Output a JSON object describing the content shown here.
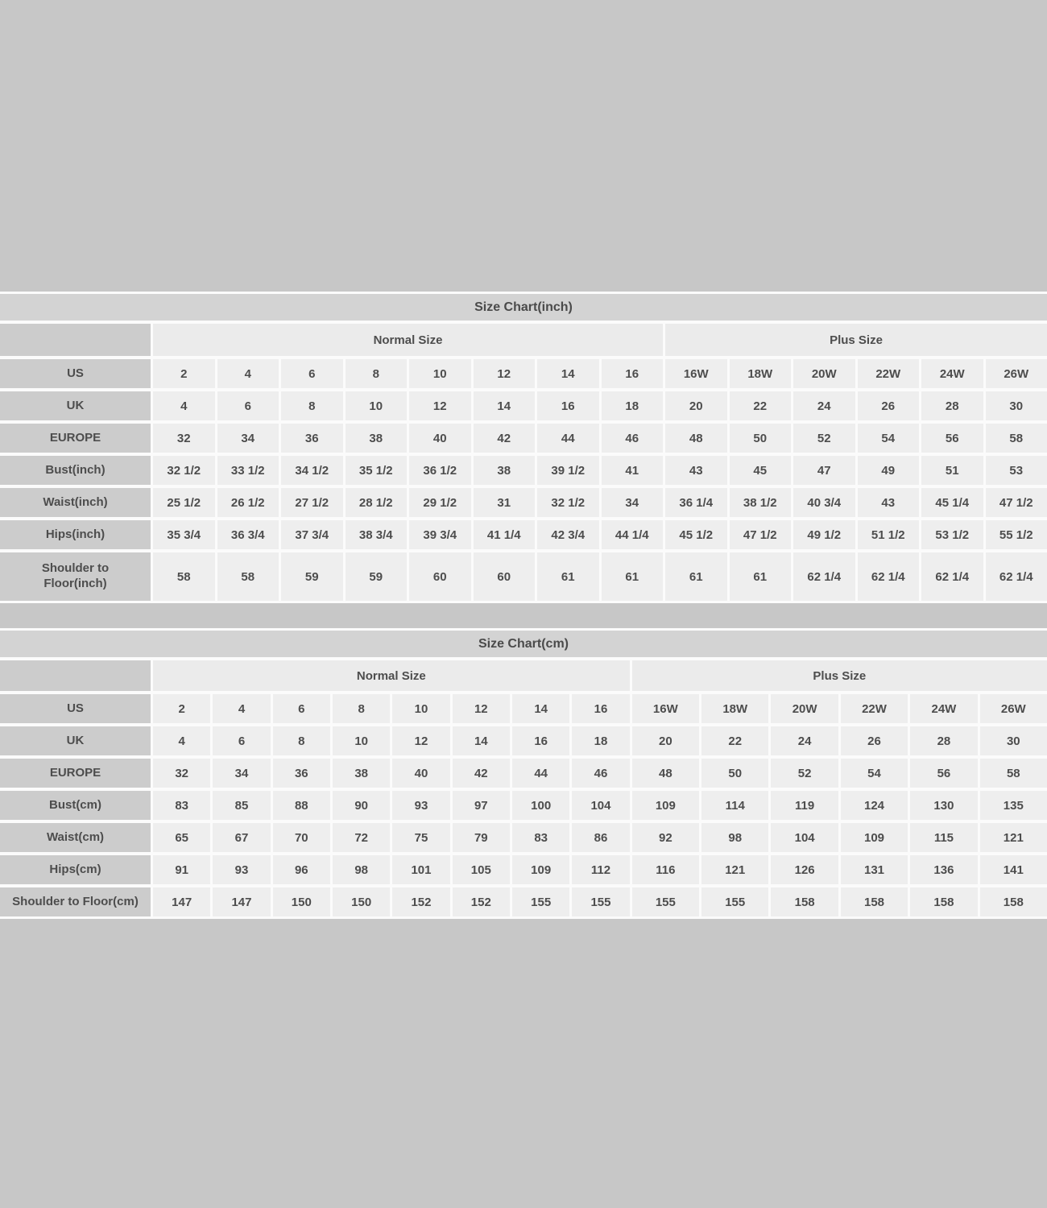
{
  "page": {
    "background_color": "#c7c7c7",
    "separator_color": "#fbfbfb",
    "title_bar_color": "#d3d3d3",
    "label_cell_color": "#cccccc",
    "group_header_color": "#ebebeb",
    "data_cell_color": "#eeeeee",
    "text_color": "#4d4d4d"
  },
  "chart_data": [
    {
      "type": "table",
      "title": "Size Chart(inch)",
      "column_groups": [
        {
          "label": "Normal Size",
          "span": 8
        },
        {
          "label": "Plus Size",
          "span": 6
        }
      ],
      "rows": [
        {
          "label": "US",
          "values": [
            "2",
            "4",
            "6",
            "8",
            "10",
            "12",
            "14",
            "16",
            "16W",
            "18W",
            "20W",
            "22W",
            "24W",
            "26W"
          ]
        },
        {
          "label": "UK",
          "values": [
            "4",
            "6",
            "8",
            "10",
            "12",
            "14",
            "16",
            "18",
            "20",
            "22",
            "24",
            "26",
            "28",
            "30"
          ]
        },
        {
          "label": "EUROPE",
          "values": [
            "32",
            "34",
            "36",
            "38",
            "40",
            "42",
            "44",
            "46",
            "48",
            "50",
            "52",
            "54",
            "56",
            "58"
          ]
        },
        {
          "label": "Bust(inch)",
          "values": [
            "32 1/2",
            "33 1/2",
            "34 1/2",
            "35 1/2",
            "36 1/2",
            "38",
            "39 1/2",
            "41",
            "43",
            "45",
            "47",
            "49",
            "51",
            "53"
          ]
        },
        {
          "label": "Waist(inch)",
          "values": [
            "25 1/2",
            "26 1/2",
            "27 1/2",
            "28 1/2",
            "29 1/2",
            "31",
            "32 1/2",
            "34",
            "36 1/4",
            "38 1/2",
            "40 3/4",
            "43",
            "45 1/4",
            "47 1/2"
          ]
        },
        {
          "label": "Hips(inch)",
          "values": [
            "35 3/4",
            "36 3/4",
            "37 3/4",
            "38 3/4",
            "39 3/4",
            "41 1/4",
            "42 3/4",
            "44 1/4",
            "45 1/2",
            "47 1/2",
            "49 1/2",
            "51 1/2",
            "53 1/2",
            "55 1/2"
          ]
        },
        {
          "label": "Shoulder to Floor(inch)",
          "tall": true,
          "wrap": true,
          "values": [
            "58",
            "58",
            "59",
            "59",
            "60",
            "60",
            "61",
            "61",
            "61",
            "61",
            "62 1/4",
            "62 1/4",
            "62 1/4",
            "62 1/4"
          ]
        }
      ]
    },
    {
      "type": "table",
      "title": "Size Chart(cm)",
      "column_groups": [
        {
          "label": "Normal Size",
          "span": 8
        },
        {
          "label": "Plus Size",
          "span": 6
        }
      ],
      "rows": [
        {
          "label": "US",
          "values": [
            "2",
            "4",
            "6",
            "8",
            "10",
            "12",
            "14",
            "16",
            "16W",
            "18W",
            "20W",
            "22W",
            "24W",
            "26W"
          ]
        },
        {
          "label": "UK",
          "values": [
            "4",
            "6",
            "8",
            "10",
            "12",
            "14",
            "16",
            "18",
            "20",
            "22",
            "24",
            "26",
            "28",
            "30"
          ]
        },
        {
          "label": "EUROPE",
          "values": [
            "32",
            "34",
            "36",
            "38",
            "40",
            "42",
            "44",
            "46",
            "48",
            "50",
            "52",
            "54",
            "56",
            "58"
          ]
        },
        {
          "label": "Bust(cm)",
          "values": [
            "83",
            "85",
            "88",
            "90",
            "93",
            "97",
            "100",
            "104",
            "109",
            "114",
            "119",
            "124",
            "130",
            "135"
          ]
        },
        {
          "label": "Waist(cm)",
          "values": [
            "65",
            "67",
            "70",
            "72",
            "75",
            "79",
            "83",
            "86",
            "92",
            "98",
            "104",
            "109",
            "115",
            "121"
          ]
        },
        {
          "label": "Hips(cm)",
          "values": [
            "91",
            "93",
            "96",
            "98",
            "101",
            "105",
            "109",
            "112",
            "116",
            "121",
            "126",
            "131",
            "136",
            "141"
          ]
        },
        {
          "label": "Shoulder to Floor(cm)",
          "values": [
            "147",
            "147",
            "150",
            "150",
            "152",
            "152",
            "155",
            "155",
            "155",
            "155",
            "158",
            "158",
            "158",
            "158"
          ]
        }
      ]
    }
  ]
}
